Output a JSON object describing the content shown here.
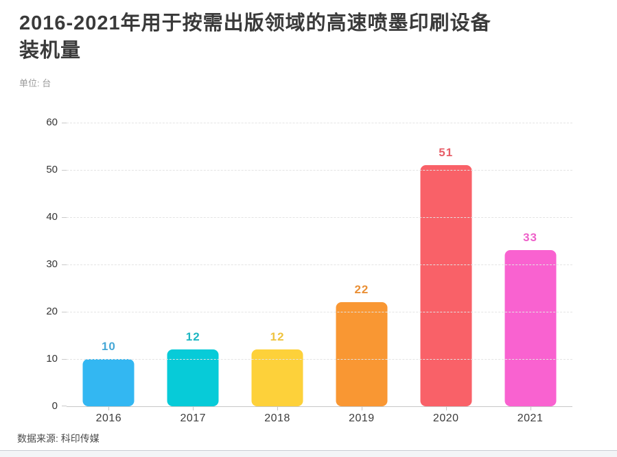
{
  "page": {
    "title_line1": "2016-2021年用于按需出版领域的高速喷墨印刷设备",
    "title_line2": "装机量",
    "unit_label": "单位: 台",
    "source_label": "数据来源: 科印传媒"
  },
  "chart_data": {
    "type": "bar",
    "title": "2016-2021年用于按需出版领域的高速喷墨印刷设备装机量",
    "subtitle_unit": "单位: 台",
    "source": "数据来源: 科印传媒",
    "categories": [
      "2016",
      "2017",
      "2018",
      "2019",
      "2020",
      "2021"
    ],
    "values": [
      10,
      12,
      12,
      22,
      51,
      33
    ],
    "bar_colors": [
      "#33B7F2",
      "#07CBD8",
      "#FDD13A",
      "#F99733",
      "#F96168",
      "#F962D0"
    ],
    "value_label_colors": [
      "#45A7D6",
      "#1CB6C2",
      "#EFC33E",
      "#EA9036",
      "#E75E68",
      "#EE60C9"
    ],
    "xlabel": "",
    "ylabel": "台",
    "ylim": [
      0,
      60
    ],
    "yticks": [
      0,
      10,
      20,
      30,
      40,
      50,
      60
    ],
    "grid": "horizontal-dashed",
    "legend": "none",
    "data_labels": "above-bars, colored to match bars"
  }
}
